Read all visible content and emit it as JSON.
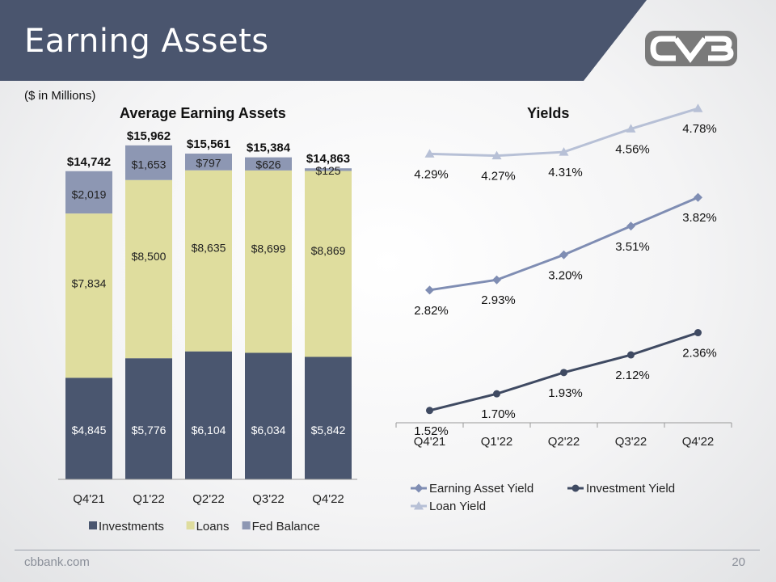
{
  "slide": {
    "title": "Earning Assets",
    "units": "($ in Millions)",
    "footer_left": "cbbank.com",
    "page_number": "20",
    "logo_name": "cvb-logo"
  },
  "colors": {
    "banner": "#4a556e",
    "investments": "#4a566f",
    "loans": "#dfdd9e",
    "fed_balance": "#8d97b3",
    "earning_asset_yield": "#7f8db3",
    "investment_yield": "#3f4a62",
    "loan_yield": "#b7c0d6"
  },
  "chart_data": [
    {
      "type": "bar",
      "stacked": true,
      "title": "Average Earning Assets",
      "categories": [
        "Q4'21",
        "Q1'22",
        "Q2'22",
        "Q3'22",
        "Q4'22"
      ],
      "series": [
        {
          "name": "Investments",
          "values": [
            4845,
            5776,
            6104,
            6034,
            5842
          ],
          "labels": [
            "$4,845",
            "$5,776",
            "$6,104",
            "$6,034",
            "$5,842"
          ]
        },
        {
          "name": "Loans",
          "values": [
            7834,
            8500,
            8635,
            8699,
            8869
          ],
          "labels": [
            "$7,834",
            "$8,500",
            "$8,635",
            "$8,699",
            "$8,869"
          ]
        },
        {
          "name": "Fed Balance",
          "values": [
            2019,
            1653,
            797,
            626,
            125
          ],
          "labels": [
            "$2,019",
            "$1,653",
            "$797",
            "$626",
            "$125"
          ]
        }
      ],
      "totals": [
        "$14,742",
        "$15,962",
        "$15,561",
        "$15,384",
        "$14,863"
      ],
      "ylim": [
        0,
        16000
      ],
      "legend": "bottom"
    },
    {
      "type": "line",
      "title": "Yields",
      "categories": [
        "Q4'21",
        "Q1'22",
        "Q2'22",
        "Q3'22",
        "Q4'22"
      ],
      "series": [
        {
          "name": "Loan Yield",
          "marker": "triangle",
          "values": [
            4.29,
            4.27,
            4.31,
            4.56,
            4.78
          ],
          "labels": [
            "4.29%",
            "4.27%",
            "4.31%",
            "4.56%",
            "4.78%"
          ]
        },
        {
          "name": "Earning Asset Yield",
          "marker": "diamond",
          "values": [
            2.82,
            2.93,
            3.2,
            3.51,
            3.82
          ],
          "labels": [
            "2.82%",
            "2.93%",
            "3.20%",
            "3.51%",
            "3.82%"
          ]
        },
        {
          "name": "Investment Yield",
          "marker": "circle",
          "values": [
            1.52,
            1.7,
            1.93,
            2.12,
            2.36
          ],
          "labels": [
            "1.52%",
            "1.70%",
            "1.93%",
            "2.12%",
            "2.36%"
          ]
        }
      ],
      "legend_order": [
        "Earning Asset Yield",
        "Investment Yield",
        "Loan Yield"
      ],
      "legend": "bottom"
    }
  ]
}
